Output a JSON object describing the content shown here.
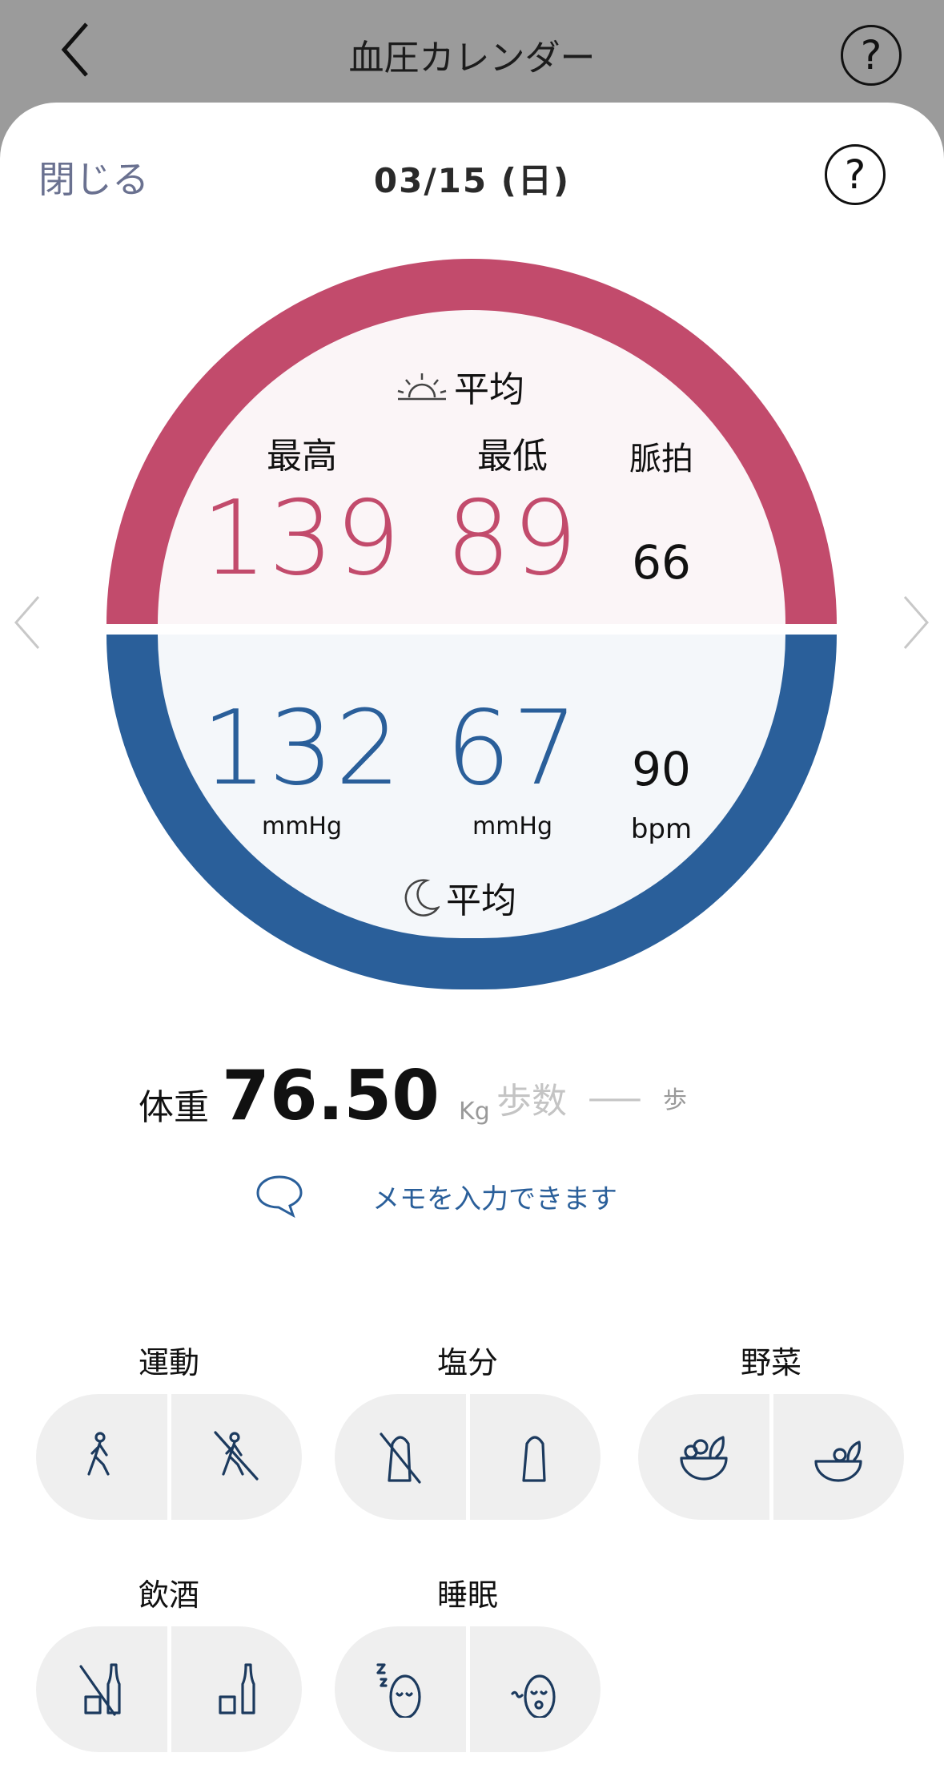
{
  "header": {
    "title": "血圧カレンダー",
    "back_icon": "chevron-left-icon",
    "help_icon": "question-circle-icon"
  },
  "sheet": {
    "close_label": "閉じる",
    "date": "03/15 (日)",
    "help_icon": "question-circle-icon"
  },
  "morning": {
    "label": "平均",
    "icon": "sunrise-icon",
    "systolic_label": "最高",
    "diastolic_label": "最低",
    "pulse_label": "脈拍",
    "systolic": "139",
    "diastolic": "89",
    "pulse": "66"
  },
  "evening": {
    "label": "平均",
    "icon": "moon-icon",
    "systolic": "132",
    "diastolic": "67",
    "pulse": "90",
    "systolic_unit": "mmHg",
    "diastolic_unit": "mmHg",
    "pulse_unit": "bpm"
  },
  "weight": {
    "label": "体重",
    "value": "76.50",
    "unit": "Kg"
  },
  "steps": {
    "label": "歩数",
    "value": "—",
    "unit": "歩"
  },
  "memo": {
    "placeholder": "メモを入力できます",
    "icon": "speech-bubble-icon"
  },
  "categories": [
    {
      "label": "運動",
      "options": [
        "exercise-icon",
        "no-exercise-icon"
      ]
    },
    {
      "label": "塩分",
      "options": [
        "no-salt-icon",
        "salt-icon"
      ]
    },
    {
      "label": "野菜",
      "options": [
        "vegetables-full-icon",
        "vegetables-light-icon"
      ]
    },
    {
      "label": "飲酒",
      "options": [
        "no-alcohol-icon",
        "alcohol-icon"
      ]
    },
    {
      "label": "睡眠",
      "options": [
        "sleep-good-icon",
        "sleep-poor-icon"
      ]
    }
  ],
  "colors": {
    "morning": "#c24b6c",
    "evening": "#2a5f9a",
    "icon": "#1c3a5e",
    "header": "#9b9b9b",
    "link": "#2a5f9a"
  }
}
